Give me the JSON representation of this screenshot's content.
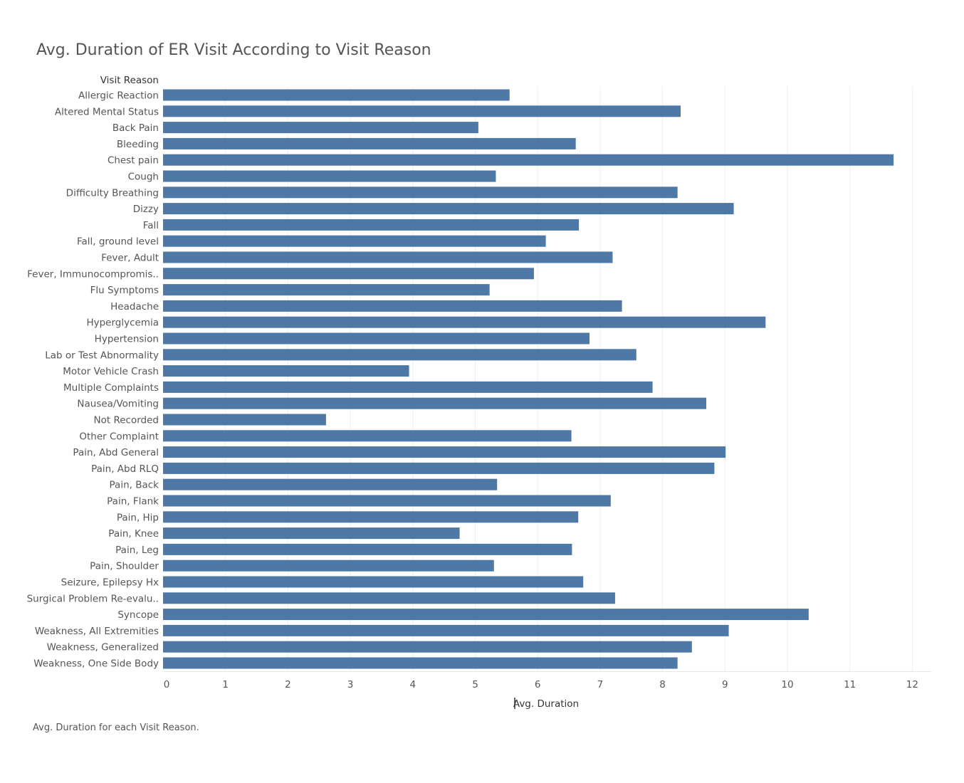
{
  "chart_data": {
    "type": "bar",
    "orientation": "horizontal",
    "title": "Avg. Duration of ER Visit According to Visit Reason",
    "category_header": "Visit Reason",
    "xlabel": "Avg. Duration",
    "caption": "Avg. Duration for each Visit Reason.",
    "xlim": [
      0,
      12.3
    ],
    "xticks": [
      0,
      1,
      2,
      3,
      4,
      5,
      6,
      7,
      8,
      9,
      10,
      11,
      12
    ],
    "grid": true,
    "bar_color": "#4e79a7",
    "categories": [
      "Allergic Reaction",
      "Altered Mental Status",
      "Back Pain",
      "Bleeding",
      "Chest pain",
      "Cough",
      "Difficulty Breathing",
      "Dizzy",
      "Fall",
      "Fall, ground level",
      "Fever, Adult",
      "Fever, Immunocompromis..",
      "Flu Symptoms",
      "Headache",
      "Hyperglycemia",
      "Hypertension",
      "Lab or Test Abnormality",
      "Motor Vehicle Crash",
      "Multiple Complaints",
      "Nausea/Vomiting",
      "Not Recorded",
      "Other Complaint",
      "Pain, Abd General",
      "Pain, Abd RLQ",
      "Pain, Back",
      "Pain, Flank",
      "Pain, Hip",
      "Pain, Knee",
      "Pain, Leg",
      "Pain, Shoulder",
      "Seizure, Epilepsy Hx",
      "Surgical Problem Re-evalu..",
      "Syncope",
      "Weakness, All Extremities",
      "Weakness, Generalized",
      "Weakness, One Side Body"
    ],
    "values": [
      5.55,
      8.29,
      5.05,
      6.61,
      11.7,
      5.33,
      8.24,
      9.14,
      6.66,
      6.13,
      7.2,
      5.94,
      5.23,
      7.35,
      9.65,
      6.83,
      7.58,
      3.94,
      7.84,
      8.7,
      2.61,
      6.54,
      9.01,
      8.83,
      5.35,
      7.17,
      6.65,
      4.75,
      6.55,
      5.3,
      6.73,
      7.24,
      10.34,
      9.06,
      8.47,
      8.24
    ]
  }
}
